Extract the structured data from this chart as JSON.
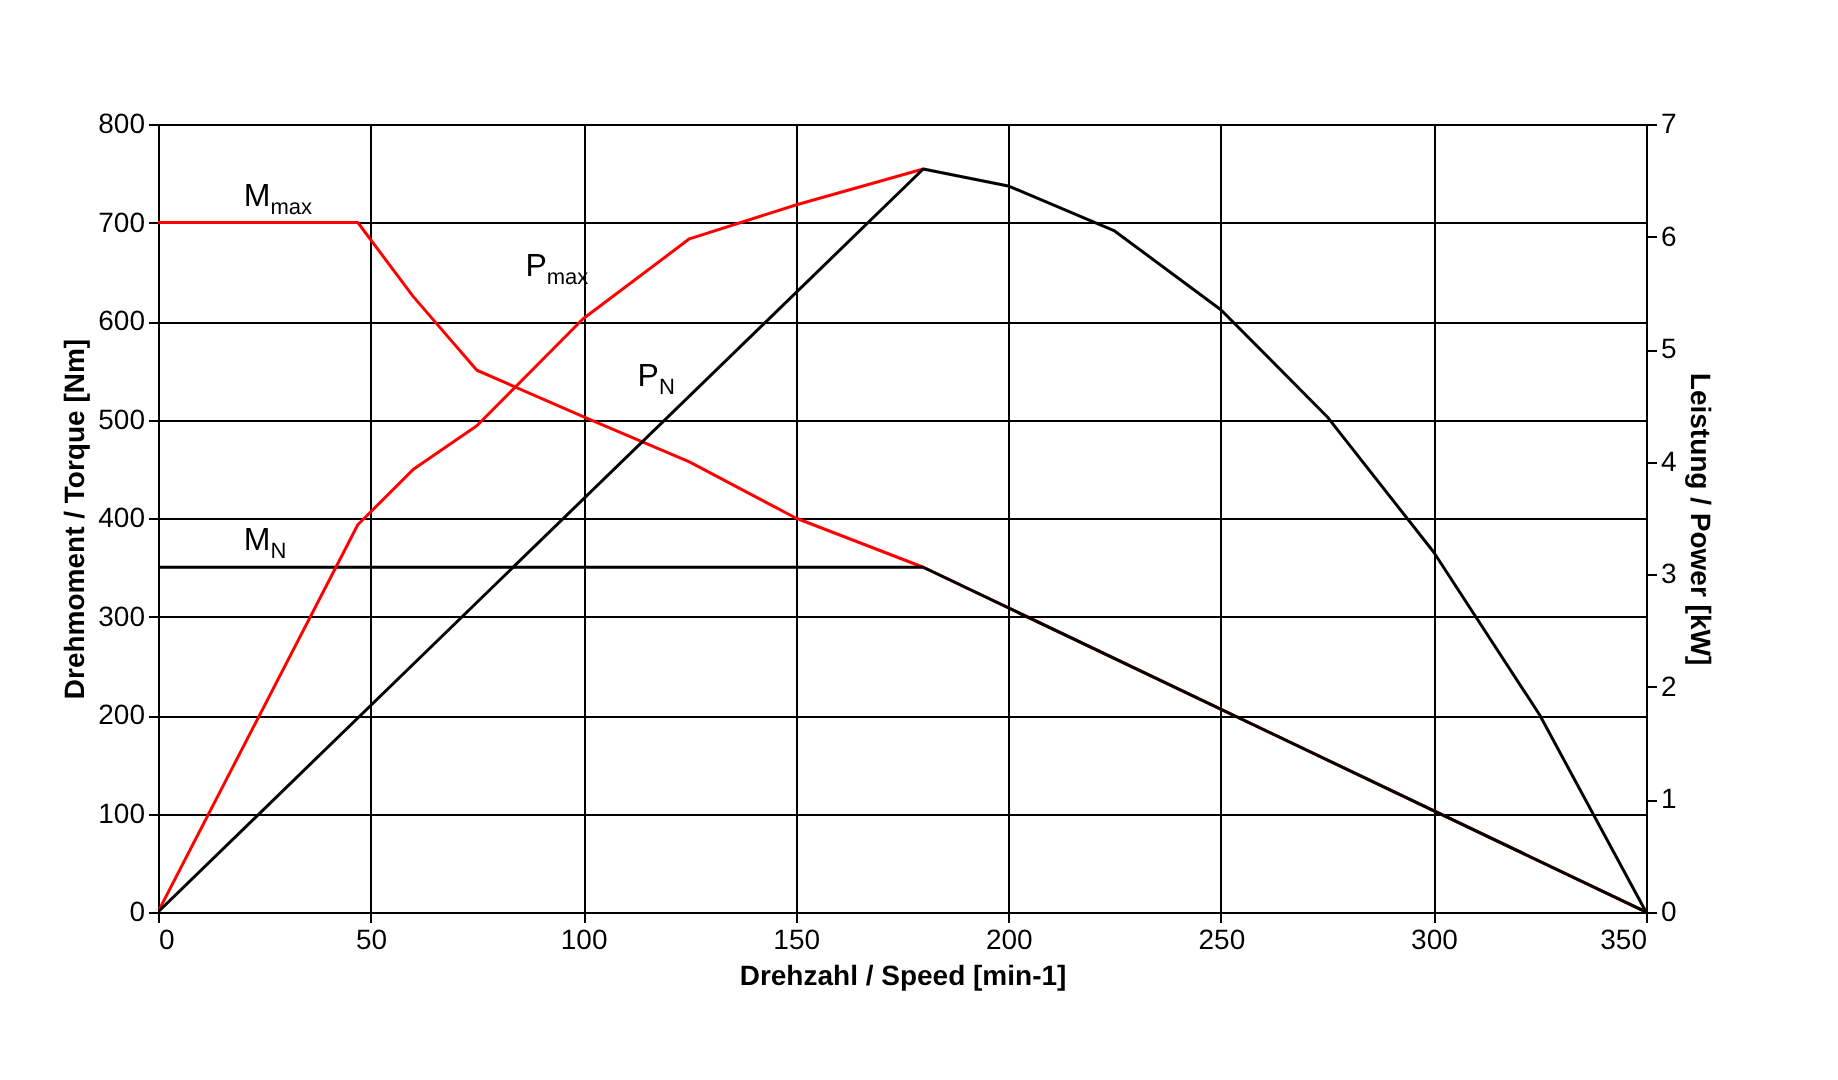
{
  "chart_data": {
    "type": "line",
    "xlabel": "Drehzahl / Speed [min-1]",
    "ylabel": "Drehmoment / Torque [Nm]",
    "y2label": "Leistung / Power [kW]",
    "xlim": [
      0,
      350
    ],
    "xticks": [
      0,
      50,
      100,
      150,
      200,
      250,
      300,
      350
    ],
    "ylim": [
      0,
      800
    ],
    "yticks": [
      0,
      100,
      200,
      300,
      400,
      500,
      600,
      700,
      800
    ],
    "y2lim": [
      0,
      7
    ],
    "y2ticks": [
      0,
      1,
      2,
      3,
      4,
      5,
      6,
      7
    ],
    "grid": true,
    "legend": false,
    "series": [
      {
        "name": "M$_{max}$",
        "color": "#ff0000",
        "x": [
          0,
          47,
          60,
          75,
          100,
          125,
          150,
          180,
          350
        ],
        "values": [
          700,
          700,
          625,
          550,
          503,
          457,
          400,
          350,
          0
        ]
      },
      {
        "name": "M$_{N}$",
        "color": "#000000",
        "x": [
          0,
          180,
          350
        ],
        "values": [
          350,
          350,
          0
        ]
      },
      {
        "name": "P$_{max}$",
        "color": "#ff0000",
        "axis": "y2",
        "x": [
          0,
          47,
          60,
          75,
          100,
          125,
          150,
          180
        ],
        "values": [
          0,
          3.44,
          3.93,
          4.32,
          5.27,
          5.98,
          6.28,
          6.6
        ]
      },
      {
        "name": "P$_{N}$",
        "color": "#000000",
        "axis": "y2",
        "x": [
          0,
          180,
          200,
          225,
          250,
          275,
          300,
          325,
          350
        ],
        "values": [
          0,
          6.6,
          6.45,
          6.05,
          5.35,
          4.4,
          3.2,
          1.75,
          0
        ]
      }
    ]
  }
}
